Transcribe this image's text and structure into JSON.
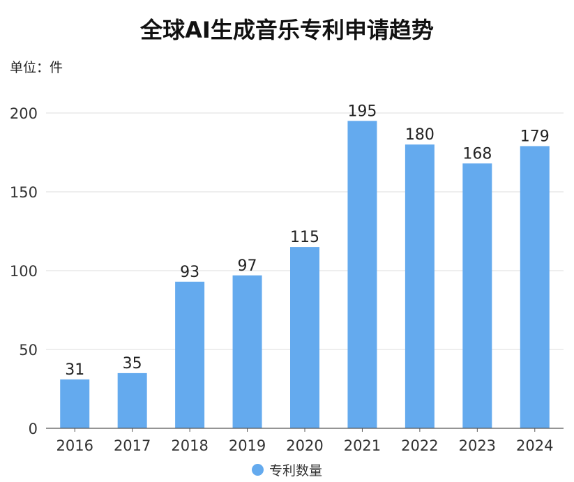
{
  "chart_data": {
    "type": "bar",
    "title": "全球AI生成音乐专利申请趋势",
    "unit_label": "单位：件",
    "categories": [
      "2016",
      "2017",
      "2018",
      "2019",
      "2020",
      "2021",
      "2022",
      "2023",
      "2024"
    ],
    "series": [
      {
        "name": "专利数量",
        "values": [
          31,
          35,
          93,
          97,
          115,
          195,
          180,
          168,
          179
        ],
        "color": "#64aaee"
      }
    ],
    "ylim": [
      0,
      200
    ],
    "yticks": [
      0,
      50,
      100,
      150,
      200
    ],
    "grid": true,
    "legend_position": "bottom-center",
    "data_labels": true
  }
}
